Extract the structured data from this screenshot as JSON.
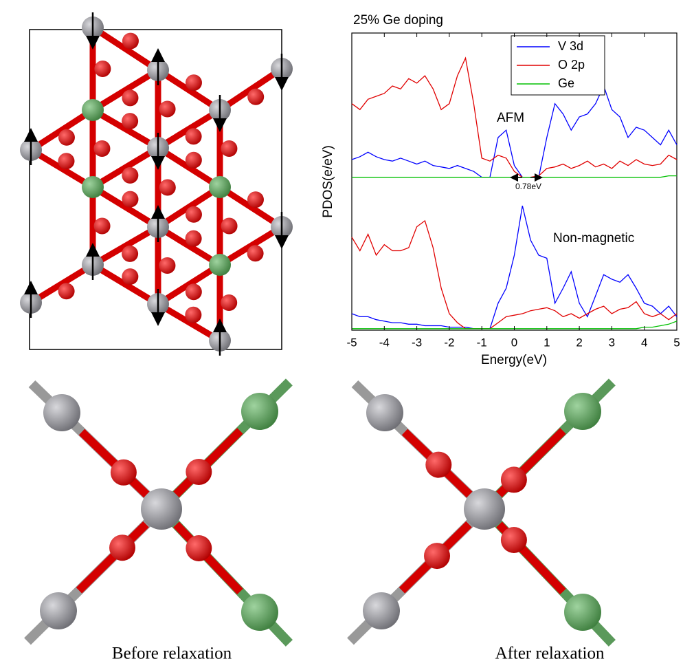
{
  "chart_data": [
    {
      "type": "line",
      "title": "25% Ge doping",
      "y_label": "PDOS(e/eV)",
      "annotations": [
        "AFM",
        "0.78eV"
      ],
      "x": [
        -5,
        -4.75,
        -4.5,
        -4.25,
        -4,
        -3.75,
        -3.5,
        -3.25,
        -3,
        -2.75,
        -2.5,
        -2.25,
        -2,
        -1.75,
        -1.5,
        -1.25,
        -1,
        -0.75,
        -0.5,
        -0.25,
        0,
        0.25,
        0.5,
        0.75,
        1,
        1.25,
        1.5,
        1.75,
        2,
        2.25,
        2.5,
        2.75,
        3,
        3.25,
        3.5,
        3.75,
        4,
        4.25,
        4.5,
        4.75,
        5
      ],
      "xlim": [
        -5,
        5
      ],
      "ylim": [
        0,
        10
      ],
      "legend": "top-center",
      "series": [
        {
          "name": "V 3d",
          "color": "#0000ff",
          "values": [
            1.4,
            1.6,
            1.9,
            1.6,
            1.4,
            1.3,
            1.5,
            1.3,
            1.1,
            1.3,
            1.0,
            0.9,
            0.8,
            1.0,
            0.8,
            0.6,
            0.2,
            0.2,
            2.9,
            3.4,
            1.0,
            0.2,
            0.2,
            0.2,
            2.9,
            5.2,
            4.5,
            3.4,
            4.3,
            4.5,
            5.2,
            6.4,
            4.8,
            4.3,
            2.9,
            3.6,
            3.4,
            2.9,
            2.4,
            3.4,
            2.4
          ]
        },
        {
          "name": "O 2p",
          "color": "#e00000",
          "values": [
            5.2,
            4.8,
            5.5,
            5.7,
            5.9,
            6.4,
            6.2,
            6.9,
            6.6,
            7.1,
            6.2,
            4.8,
            5.2,
            7.1,
            8.3,
            5.2,
            1.5,
            1.3,
            1.7,
            1.5,
            0.6,
            0.2,
            0.2,
            0.3,
            0.8,
            0.9,
            1.1,
            0.8,
            1.0,
            1.3,
            0.9,
            1.1,
            0.8,
            1.3,
            1.0,
            1.4,
            1.1,
            1.0,
            1.1,
            1.7,
            1.4
          ]
        },
        {
          "name": "Ge",
          "color": "#00c000",
          "values": [
            0.2,
            0.2,
            0.2,
            0.2,
            0.2,
            0.2,
            0.2,
            0.2,
            0.2,
            0.2,
            0.2,
            0.2,
            0.2,
            0.2,
            0.2,
            0.2,
            0.2,
            0.2,
            0.2,
            0.2,
            0.2,
            0.2,
            0.2,
            0.2,
            0.2,
            0.2,
            0.2,
            0.2,
            0.2,
            0.2,
            0.2,
            0.2,
            0.2,
            0.2,
            0.2,
            0.2,
            0.2,
            0.2,
            0.2,
            0.3,
            0.3
          ]
        }
      ]
    },
    {
      "type": "line",
      "x_label": "Energy(eV)",
      "annotations": [
        "Non-magnetic"
      ],
      "x": [
        -5,
        -4.75,
        -4.5,
        -4.25,
        -4,
        -3.75,
        -3.5,
        -3.25,
        -3,
        -2.75,
        -2.5,
        -2.25,
        -2,
        -1.75,
        -1.5,
        -1.25,
        -1,
        -0.75,
        -0.5,
        -0.25,
        0,
        0.25,
        0.5,
        0.75,
        1,
        1.25,
        1.5,
        1.75,
        2,
        2.25,
        2.5,
        2.75,
        3,
        3.25,
        3.5,
        3.75,
        4,
        4.25,
        4.5,
        4.75,
        5
      ],
      "xlim": [
        -5,
        5
      ],
      "xticks": [
        -5,
        -4,
        -3,
        -2,
        -1,
        0,
        1,
        2,
        3,
        4,
        5
      ],
      "ylim": [
        0,
        10
      ],
      "series": [
        {
          "color": "#0000ff",
          "values": [
            1.1,
            0.9,
            0.9,
            0.7,
            0.6,
            0.5,
            0.5,
            0.4,
            0.4,
            0.3,
            0.3,
            0.3,
            0.2,
            0.2,
            0.2,
            0.1,
            0.1,
            0.1,
            1.8,
            2.8,
            5.0,
            8.3,
            6.0,
            5.0,
            4.8,
            1.8,
            2.8,
            3.9,
            1.8,
            0.9,
            2.3,
            3.7,
            3.4,
            3.2,
            3.7,
            2.8,
            1.8,
            1.6,
            1.1,
            1.6,
            0.9
          ]
        },
        {
          "color": "#e00000",
          "values": [
            6.2,
            5.3,
            6.4,
            5.0,
            5.7,
            5.3,
            5.3,
            5.5,
            6.9,
            7.3,
            5.5,
            2.8,
            1.1,
            0.5,
            0.1,
            0.1,
            0.1,
            0.1,
            0.5,
            0.9,
            1.0,
            1.1,
            1.3,
            1.4,
            1.5,
            1.3,
            0.9,
            1.1,
            0.8,
            1.1,
            1.4,
            1.6,
            1.1,
            1.4,
            1.5,
            1.9,
            1.1,
            0.9,
            1.1,
            0.7,
            1.1
          ]
        },
        {
          "color": "#00c000",
          "values": [
            0.1,
            0.1,
            0.1,
            0.1,
            0.1,
            0.1,
            0.1,
            0.1,
            0.1,
            0.1,
            0.1,
            0.1,
            0.1,
            0.1,
            0.1,
            0.1,
            0.1,
            0.1,
            0.1,
            0.1,
            0.1,
            0.1,
            0.1,
            0.1,
            0.1,
            0.1,
            0.1,
            0.1,
            0.1,
            0.1,
            0.1,
            0.1,
            0.1,
            0.1,
            0.1,
            0.1,
            0.2,
            0.2,
            0.3,
            0.4,
            0.6
          ]
        }
      ]
    }
  ],
  "figure": {
    "captions": [
      "Before relaxation",
      "After relaxation"
    ]
  }
}
